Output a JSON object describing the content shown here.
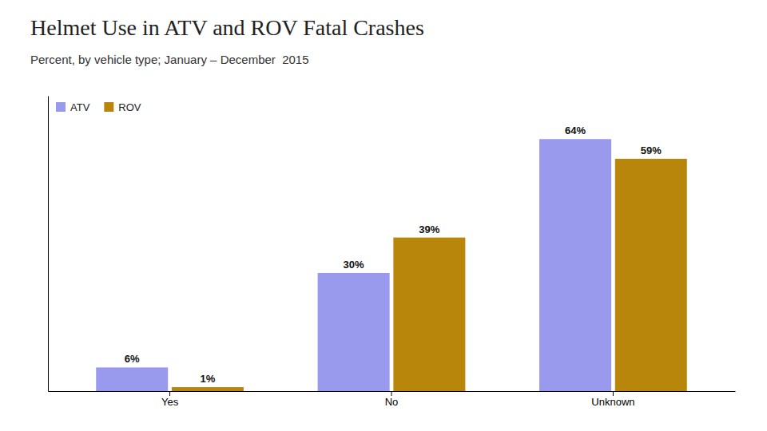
{
  "chart_data": {
    "type": "bar",
    "title": "Helmet Use in ATV and ROV Fatal Crashes",
    "subtitle": "Percent, by vehicle type; January – December  2015",
    "categories": [
      "Yes",
      "No",
      "Unknown"
    ],
    "series": [
      {
        "name": "ATV",
        "color": "#9999ee",
        "values": [
          6,
          30,
          64
        ],
        "value_labels": [
          "6%",
          "30%",
          "64%"
        ]
      },
      {
        "name": "ROV",
        "color": "#b8860b",
        "values": [
          1,
          39,
          59
        ],
        "value_labels": [
          "1%",
          "39%",
          "59%"
        ]
      }
    ],
    "ylim": [
      0,
      75
    ],
    "grid": false,
    "legend": "upper left",
    "data_labels": true,
    "tick_labels": "x"
  }
}
